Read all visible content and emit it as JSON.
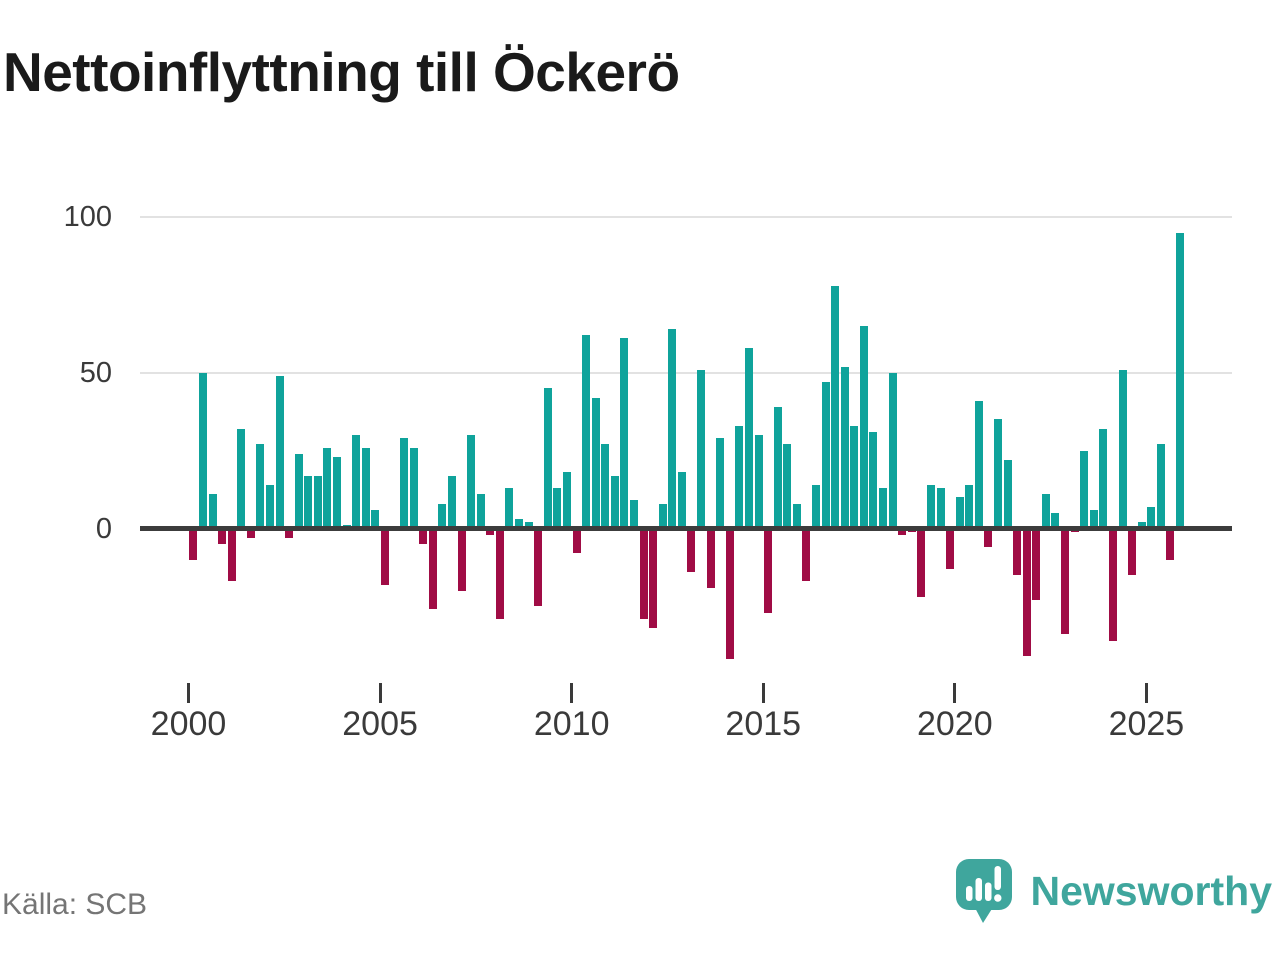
{
  "title": "Nettoinflyttning till Öckerö",
  "source": "Källa: SCB",
  "branding": {
    "logo_text": "Newsworthy",
    "logo_icon": "newsworthy-speech-bubble-chart-icon"
  },
  "colors": {
    "positive": "#0fa39b",
    "negative": "#a00c45",
    "grid": "#e2e2e2",
    "axis": "#3c3c3c",
    "tick_text": "#3a3a3a",
    "source_text": "#757575",
    "brand": "#3fa69d"
  },
  "chart_data": {
    "type": "bar",
    "title": "Nettoinflyttning till Öckerö",
    "frequency": "quarterly",
    "start_period": "2000 Q1",
    "end_period": "2025 Q4",
    "grid": "horizontal",
    "legend": "none",
    "y_ticks": [
      0,
      50,
      100
    ],
    "ylim": [
      -50,
      100
    ],
    "x_tick_labels": [
      "2000",
      "2005",
      "2010",
      "2015",
      "2020",
      "2025"
    ],
    "series": [
      {
        "year": 2000,
        "values": [
          -10,
          50,
          11,
          -5
        ]
      },
      {
        "year": 2001,
        "values": [
          -17,
          32,
          -3,
          27
        ]
      },
      {
        "year": 2002,
        "values": [
          14,
          49,
          -3,
          24
        ]
      },
      {
        "year": 2003,
        "values": [
          17,
          17,
          26,
          23
        ]
      },
      {
        "year": 2004,
        "values": [
          1,
          30,
          26,
          6
        ]
      },
      {
        "year": 2005,
        "values": [
          -18,
          0,
          29,
          26
        ]
      },
      {
        "year": 2006,
        "values": [
          -5,
          -26,
          8,
          17
        ]
      },
      {
        "year": 2007,
        "values": [
          -20,
          30,
          11,
          -2
        ]
      },
      {
        "year": 2008,
        "values": [
          -29,
          13,
          3,
          2
        ]
      },
      {
        "year": 2009,
        "values": [
          -25,
          45,
          13,
          18
        ]
      },
      {
        "year": 2010,
        "values": [
          -8,
          62,
          42,
          27
        ]
      },
      {
        "year": 2011,
        "values": [
          17,
          61,
          9,
          -29
        ]
      },
      {
        "year": 2012,
        "values": [
          -32,
          8,
          64,
          18
        ]
      },
      {
        "year": 2013,
        "values": [
          -14,
          51,
          -19,
          29
        ]
      },
      {
        "year": 2014,
        "values": [
          -42,
          33,
          58,
          30
        ]
      },
      {
        "year": 2015,
        "values": [
          -27,
          39,
          27,
          8
        ]
      },
      {
        "year": 2016,
        "values": [
          -17,
          14,
          47,
          78
        ]
      },
      {
        "year": 2017,
        "values": [
          52,
          33,
          65,
          31
        ]
      },
      {
        "year": 2018,
        "values": [
          13,
          50,
          -2,
          -1
        ]
      },
      {
        "year": 2019,
        "values": [
          -22,
          14,
          13,
          -13
        ]
      },
      {
        "year": 2020,
        "values": [
          10,
          14,
          41,
          -6
        ]
      },
      {
        "year": 2021,
        "values": [
          35,
          22,
          -15,
          -41
        ]
      },
      {
        "year": 2022,
        "values": [
          -23,
          11,
          5,
          -34
        ]
      },
      {
        "year": 2023,
        "values": [
          -1,
          25,
          6,
          32
        ]
      },
      {
        "year": 2024,
        "values": [
          -36,
          51,
          -15,
          2
        ]
      },
      {
        "year": 2025,
        "values": [
          7,
          27,
          -10,
          95
        ]
      }
    ]
  }
}
